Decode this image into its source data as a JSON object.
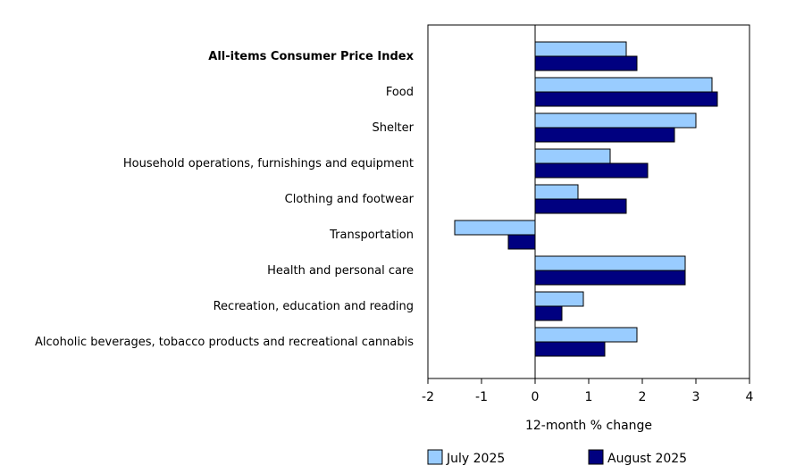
{
  "chart_data": {
    "type": "bar",
    "orientation": "horizontal",
    "title": "",
    "xlabel": "12-month % change",
    "ylabel": "",
    "xlim": [
      -2,
      4
    ],
    "xticks": [
      -2,
      -1,
      0,
      1,
      2,
      3,
      4
    ],
    "grid": false,
    "legend_position": "bottom",
    "categories": [
      "All-items Consumer Price Index",
      "Food",
      "Shelter",
      "Household operations, furnishings and equipment",
      "Clothing and footwear",
      "Transportation",
      "Health and personal care",
      "Recreation, education and reading",
      "Alcoholic beverages, tobacco products and recreational cannabis"
    ],
    "bold_categories": [
      "All-items Consumer Price Index"
    ],
    "series": [
      {
        "name": "July 2025",
        "color": "#99CCFF",
        "values": [
          1.7,
          3.3,
          3.0,
          1.4,
          0.8,
          -1.5,
          2.8,
          0.9,
          1.9
        ]
      },
      {
        "name": "August 2025",
        "color": "#000080",
        "values": [
          1.9,
          3.4,
          2.6,
          2.1,
          1.7,
          -0.5,
          2.8,
          0.5,
          1.3
        ]
      }
    ]
  }
}
